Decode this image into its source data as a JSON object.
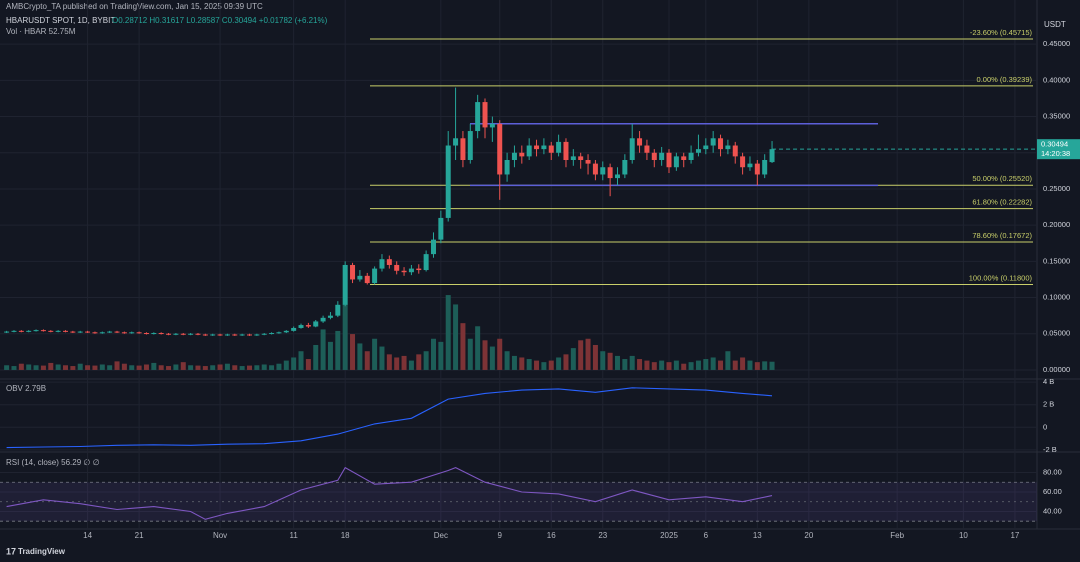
{
  "header": {
    "publisher": "AMBCrypto_TA published on TradingView.com, Jan 15, 2025 09:39 UTC",
    "symbol": "HBARUSDT SPOT, 1D, BYBIT",
    "ohlc": "O0.28712 H0.31617 L0.28587 C0.30494 +0.01782 (+6.21%)",
    "volume": "Vol · HBAR 52.75M",
    "currency": "USDT",
    "countdown": "14:20:38",
    "brand": "TradingView"
  },
  "chart_data": [
    {
      "type": "candlestick",
      "up_color": "#26a69a",
      "down_color": "#ef5350",
      "open": [
        0.052,
        0.053,
        0.054,
        0.053,
        0.054,
        0.055,
        0.054,
        0.053,
        0.054,
        0.053,
        0.052,
        0.053,
        0.052,
        0.051,
        0.052,
        0.053,
        0.052,
        0.051,
        0.052,
        0.051,
        0.05,
        0.051,
        0.05,
        0.049,
        0.05,
        0.049,
        0.05,
        0.049,
        0.048,
        0.049,
        0.048,
        0.049,
        0.048,
        0.049,
        0.048,
        0.049,
        0.05,
        0.051,
        0.052,
        0.054,
        0.058,
        0.062,
        0.06,
        0.067,
        0.072,
        0.075,
        0.09,
        0.145,
        0.125,
        0.13,
        0.12,
        0.14,
        0.153,
        0.145,
        0.137,
        0.135,
        0.14,
        0.138,
        0.16,
        0.18,
        0.21,
        0.31,
        0.32,
        0.29,
        0.33,
        0.37,
        0.335,
        0.34,
        0.27,
        0.29,
        0.3,
        0.295,
        0.31,
        0.305,
        0.31,
        0.3,
        0.315,
        0.29,
        0.295,
        0.29,
        0.285,
        0.27,
        0.28,
        0.265,
        0.27,
        0.29,
        0.32,
        0.31,
        0.3,
        0.29,
        0.3,
        0.28,
        0.295,
        0.29,
        0.3,
        0.305,
        0.31,
        0.32,
        0.305,
        0.31,
        0.295,
        0.28,
        0.285,
        0.27,
        0.28712
      ],
      "high": [
        0.054,
        0.055,
        0.055,
        0.055,
        0.056,
        0.056,
        0.055,
        0.055,
        0.055,
        0.054,
        0.054,
        0.054,
        0.053,
        0.053,
        0.054,
        0.054,
        0.053,
        0.053,
        0.053,
        0.052,
        0.052,
        0.052,
        0.051,
        0.051,
        0.051,
        0.051,
        0.051,
        0.05,
        0.05,
        0.05,
        0.05,
        0.05,
        0.05,
        0.05,
        0.05,
        0.051,
        0.052,
        0.053,
        0.055,
        0.06,
        0.064,
        0.065,
        0.069,
        0.075,
        0.08,
        0.095,
        0.15,
        0.148,
        0.138,
        0.134,
        0.143,
        0.16,
        0.158,
        0.15,
        0.142,
        0.145,
        0.146,
        0.165,
        0.19,
        0.22,
        0.33,
        0.39,
        0.33,
        0.34,
        0.38,
        0.375,
        0.35,
        0.345,
        0.3,
        0.31,
        0.31,
        0.32,
        0.318,
        0.32,
        0.315,
        0.325,
        0.32,
        0.305,
        0.3,
        0.298,
        0.29,
        0.288,
        0.285,
        0.28,
        0.298,
        0.34,
        0.33,
        0.318,
        0.305,
        0.308,
        0.305,
        0.3,
        0.3,
        0.31,
        0.325,
        0.32,
        0.33,
        0.325,
        0.318,
        0.315,
        0.3,
        0.295,
        0.29,
        0.298,
        0.31617
      ],
      "low": [
        0.051,
        0.052,
        0.052,
        0.052,
        0.053,
        0.053,
        0.052,
        0.052,
        0.052,
        0.051,
        0.051,
        0.051,
        0.05,
        0.05,
        0.051,
        0.051,
        0.05,
        0.05,
        0.05,
        0.049,
        0.049,
        0.049,
        0.048,
        0.048,
        0.048,
        0.048,
        0.048,
        0.047,
        0.047,
        0.047,
        0.047,
        0.047,
        0.047,
        0.047,
        0.047,
        0.048,
        0.049,
        0.05,
        0.051,
        0.053,
        0.057,
        0.058,
        0.059,
        0.065,
        0.07,
        0.073,
        0.088,
        0.12,
        0.122,
        0.118,
        0.118,
        0.136,
        0.14,
        0.132,
        0.13,
        0.131,
        0.133,
        0.136,
        0.155,
        0.175,
        0.205,
        0.29,
        0.28,
        0.285,
        0.32,
        0.32,
        0.315,
        0.235,
        0.26,
        0.28,
        0.285,
        0.29,
        0.295,
        0.298,
        0.29,
        0.295,
        0.28,
        0.282,
        0.278,
        0.27,
        0.262,
        0.262,
        0.24,
        0.255,
        0.265,
        0.285,
        0.3,
        0.29,
        0.28,
        0.282,
        0.272,
        0.275,
        0.28,
        0.285,
        0.295,
        0.298,
        0.3,
        0.295,
        0.298,
        0.285,
        0.27,
        0.275,
        0.255,
        0.265,
        0.28587
      ],
      "close": [
        0.053,
        0.054,
        0.053,
        0.054,
        0.055,
        0.054,
        0.053,
        0.054,
        0.053,
        0.052,
        0.053,
        0.052,
        0.051,
        0.052,
        0.053,
        0.052,
        0.051,
        0.052,
        0.051,
        0.05,
        0.051,
        0.05,
        0.049,
        0.05,
        0.049,
        0.05,
        0.049,
        0.048,
        0.049,
        0.048,
        0.049,
        0.048,
        0.049,
        0.048,
        0.049,
        0.05,
        0.051,
        0.052,
        0.054,
        0.058,
        0.062,
        0.06,
        0.067,
        0.072,
        0.075,
        0.09,
        0.145,
        0.125,
        0.13,
        0.12,
        0.14,
        0.153,
        0.145,
        0.137,
        0.135,
        0.14,
        0.138,
        0.16,
        0.18,
        0.21,
        0.31,
        0.32,
        0.29,
        0.33,
        0.37,
        0.335,
        0.34,
        0.27,
        0.29,
        0.3,
        0.295,
        0.31,
        0.305,
        0.31,
        0.3,
        0.315,
        0.29,
        0.295,
        0.29,
        0.285,
        0.27,
        0.28,
        0.265,
        0.27,
        0.29,
        0.32,
        0.31,
        0.3,
        0.29,
        0.3,
        0.28,
        0.295,
        0.29,
        0.3,
        0.305,
        0.31,
        0.32,
        0.305,
        0.31,
        0.295,
        0.28,
        0.285,
        0.27,
        0.29,
        0.30494
      ],
      "volume": [
        30,
        25,
        40,
        35,
        30,
        28,
        45,
        35,
        30,
        25,
        40,
        30,
        28,
        35,
        30,
        55,
        40,
        30,
        28,
        35,
        45,
        30,
        25,
        35,
        50,
        30,
        28,
        25,
        30,
        35,
        40,
        30,
        25,
        28,
        30,
        35,
        30,
        40,
        60,
        80,
        120,
        70,
        160,
        260,
        180,
        250,
        420,
        230,
        170,
        120,
        200,
        150,
        100,
        80,
        90,
        60,
        100,
        120,
        200,
        180,
        480,
        420,
        300,
        200,
        280,
        190,
        150,
        200,
        120,
        90,
        80,
        70,
        60,
        50,
        60,
        80,
        100,
        140,
        190,
        200,
        160,
        120,
        110,
        90,
        70,
        90,
        70,
        60,
        50,
        60,
        50,
        60,
        40,
        50,
        60,
        70,
        80,
        60,
        120,
        60,
        80,
        60,
        50,
        55,
        52.75
      ],
      "xlim": [
        -0.9,
        140
      ],
      "ylim": [
        -0.0125,
        0.511
      ],
      "yticks": [
        {
          "value": 0.45,
          "label": "0.45000"
        },
        {
          "value": 0.4,
          "label": "0.40000"
        },
        {
          "value": 0.35,
          "label": "0.35000"
        },
        {
          "value": 0.3,
          "label": "0.30000"
        },
        {
          "value": 0.25,
          "label": "0.25000"
        },
        {
          "value": 0.2,
          "label": "0.20000"
        },
        {
          "value": 0.15,
          "label": "0.15000"
        },
        {
          "value": 0.1,
          "label": "0.10000"
        },
        {
          "value": 0.05,
          "label": "0.05000"
        },
        {
          "value": 0,
          "label": "0.00000"
        }
      ],
      "xticks": [
        {
          "value": 11,
          "label": "14"
        },
        {
          "value": 18,
          "label": "21"
        },
        {
          "value": 29,
          "label": "Nov"
        },
        {
          "value": 39,
          "label": "11"
        },
        {
          "value": 46,
          "label": "18"
        },
        {
          "value": 59,
          "label": "Dec"
        },
        {
          "value": 67,
          "label": "9"
        },
        {
          "value": 74,
          "label": "16"
        },
        {
          "value": 81,
          "label": "23"
        },
        {
          "value": 90,
          "label": "2025"
        },
        {
          "value": 95,
          "label": "6"
        },
        {
          "value": 102,
          "label": "13"
        },
        {
          "value": 109,
          "label": "20"
        },
        {
          "value": 121,
          "label": "Feb"
        },
        {
          "value": 130,
          "label": "10"
        },
        {
          "value": 137,
          "label": "17"
        }
      ],
      "fib_color": "#c9cf6a",
      "levels": [
        {
          "label": "-23.60% (0.45715)",
          "value": 0.45715
        },
        {
          "label": "0.00% (0.39239)",
          "value": 0.39239
        },
        {
          "label": "50.00% (0.25520)",
          "value": 0.2552
        },
        {
          "label": "61.80% (0.22282)",
          "value": 0.22282
        },
        {
          "label": "78.60% (0.17672)",
          "value": 0.17672
        },
        {
          "label": "100.00% (0.11800)",
          "value": 0.118
        }
      ],
      "range_color": "#5c5fd8",
      "range": [
        0.34,
        0.255
      ]
    },
    {
      "type": "line",
      "name": "OBV 2.79B",
      "color": "#2962ff",
      "x": [
        0,
        5,
        10,
        15,
        20,
        25,
        30,
        35,
        40,
        45,
        50,
        55,
        60,
        65,
        70,
        75,
        80,
        85,
        90,
        95,
        100,
        104
      ],
      "values": [
        -1.8,
        -1.75,
        -1.7,
        -1.6,
        -1.55,
        -1.6,
        -1.5,
        -1.45,
        -1.2,
        -0.6,
        0.3,
        0.8,
        2.5,
        3.0,
        3.3,
        3.4,
        3.1,
        3.5,
        3.4,
        3.3,
        3.0,
        2.79
      ],
      "ylim": [
        -2.19,
        4.28
      ],
      "yticks": [
        {
          "value": 4,
          "label": "4 B"
        },
        {
          "value": 2,
          "label": "2 B"
        },
        0,
        {
          "value": -2,
          "label": "-2 B"
        }
      ]
    },
    {
      "type": "line",
      "name": "RSI (14, close) 56.29 ∅ ∅",
      "color": "#7e57c2",
      "x": [
        0,
        5,
        10,
        15,
        20,
        25,
        27,
        30,
        35,
        40,
        45,
        46,
        50,
        55,
        60,
        61,
        65,
        70,
        75,
        80,
        85,
        90,
        95,
        100,
        104
      ],
      "values": [
        45,
        52,
        48,
        42,
        45,
        40,
        32,
        38,
        45,
        62,
        72,
        85,
        68,
        70,
        82,
        85,
        70,
        60,
        58,
        50,
        62,
        52,
        55,
        50,
        56.29
      ],
      "ylim": [
        22,
        101
      ],
      "band": [
        30,
        70
      ],
      "midline": 50,
      "yticks": [
        {
          "value": 80,
          "label": "80.00"
        },
        {
          "value": 60,
          "label": "60.00"
        },
        {
          "value": 40,
          "label": "40.00"
        }
      ]
    }
  ]
}
